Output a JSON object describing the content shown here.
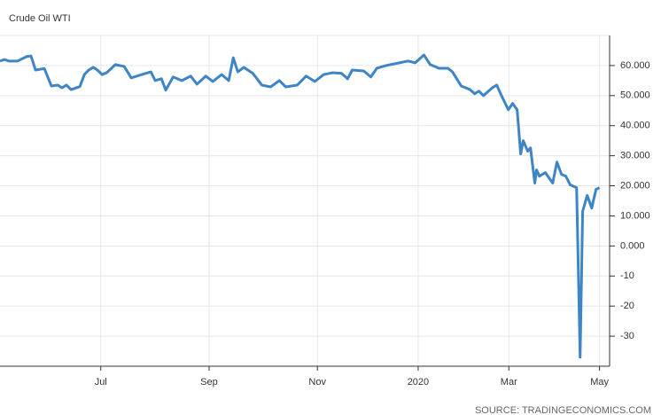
{
  "chart_data": {
    "type": "line",
    "title": "Crude Oil WTI",
    "source": "SOURCE: TRADINGECONOMICS.COM",
    "color": "#3d85c6",
    "grid": true,
    "xlim": [
      0,
      242
    ],
    "xticks": [
      {
        "value": 40,
        "label": "Jul"
      },
      {
        "value": 83,
        "label": "Sep"
      },
      {
        "value": 126,
        "label": "Nov"
      },
      {
        "value": 166,
        "label": "2020"
      },
      {
        "value": 202,
        "label": "Mar"
      },
      {
        "value": 238,
        "label": "May"
      }
    ],
    "ylim": [
      -40,
      70
    ],
    "yticks": [
      {
        "value": 60,
        "label": "60.000"
      },
      {
        "value": 50,
        "label": "50.000"
      },
      {
        "value": 40,
        "label": "40.000"
      },
      {
        "value": 30,
        "label": "30.000"
      },
      {
        "value": 20,
        "label": "20.000"
      },
      {
        "value": 10,
        "label": "10.000"
      },
      {
        "value": 0,
        "label": "0.000"
      },
      -10,
      -20,
      -30
    ],
    "x": [
      0,
      1.8,
      3.5,
      7,
      10.6,
      12.3,
      14.1,
      17.6,
      20.4,
      22.9,
      24.6,
      26.4,
      28.2,
      31.7,
      33.5,
      35.2,
      37,
      38.7,
      40.5,
      42.3,
      45.8,
      49.3,
      52.1,
      56.3,
      59.9,
      61.6,
      64.1,
      65.8,
      68.7,
      72.2,
      75.7,
      78.2,
      81.7,
      84.5,
      88,
      90.8,
      92.6,
      94.4,
      96.8,
      100.4,
      103.9,
      107.4,
      110.9,
      113.4,
      118,
      121.5,
      125,
      128.5,
      132,
      135.6,
      138,
      139.8,
      144.4,
      147.2,
      149.6,
      153.2,
      158.5,
      162,
      164.8,
      168.3,
      170.8,
      174.3,
      177.8,
      179.6,
      183.1,
      186.6,
      188.4,
      190.1,
      191.9,
      195.4,
      197.2,
      198.9,
      201.8,
      203.5,
      205.3,
      206.7,
      207.7,
      209.5,
      210.6,
      212.3,
      213,
      214.1,
      216.5,
      219.4,
      221.1,
      222.9,
      224.6,
      226.4,
      228.9,
      230.3,
      231.3,
      233.1,
      234.9,
      236.6,
      238
    ],
    "values": [
      61.5,
      62,
      61.5,
      61.5,
      63,
      63.2,
      58.5,
      59,
      53.2,
      53.5,
      52.6,
      53.5,
      52,
      53,
      57,
      58.5,
      59.4,
      58.5,
      57,
      57.6,
      60.3,
      59.7,
      55.9,
      57,
      57.9,
      55,
      55.6,
      51.8,
      56.2,
      55,
      56.5,
      53.8,
      56.5,
      54.7,
      57,
      55,
      62.6,
      57.9,
      59.4,
      57.4,
      53.5,
      52.9,
      55,
      52.9,
      53.5,
      56.5,
      54.7,
      57,
      57.6,
      57.4,
      55.6,
      58.5,
      58.2,
      56.2,
      59.1,
      60,
      60.9,
      61.5,
      60.9,
      63.5,
      60.3,
      59.1,
      59.1,
      57.9,
      53.2,
      52,
      50.6,
      51.5,
      50,
      52.6,
      53.5,
      50.3,
      45.3,
      47.4,
      45.3,
      30.6,
      35,
      31.5,
      32.6,
      20.9,
      25.3,
      23.2,
      24.4,
      20.9,
      27.9,
      23.8,
      23.2,
      20.3,
      19.4,
      -37,
      11.5,
      16.8,
      12.6,
      18.8,
      19.4
    ]
  }
}
